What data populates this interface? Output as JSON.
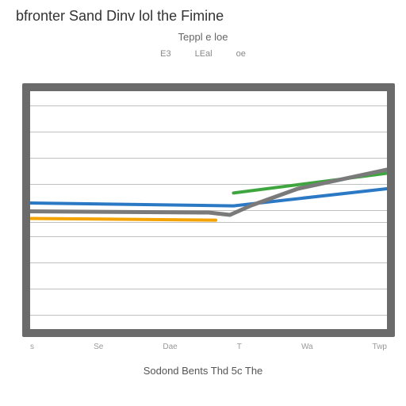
{
  "title": "bfronter Sand Dinv lol the Fimine",
  "subtitle": "Teppl e loe",
  "legend_items": [
    "E3",
    "LEal",
    "oe"
  ],
  "xlabel": "Sodond Bents Thd 5c The",
  "xticks": [
    "s",
    "Se",
    "Dae",
    "T",
    "Wa",
    "Twp"
  ],
  "chart": {
    "type": "line",
    "background_color": "#ffffff",
    "frame_color": "#6b6b6b",
    "frame_width": 10,
    "grid_color": "#c0c0c0",
    "gridline_y_positions_pct": [
      6,
      17,
      28,
      39,
      50,
      55,
      61,
      72,
      83,
      94
    ],
    "ylim": [
      0,
      100
    ],
    "series": [
      {
        "name": "green",
        "color": "#3fa63f",
        "width": 4,
        "points": [
          [
            57,
            42.8
          ],
          [
            100,
            34.5
          ]
        ]
      },
      {
        "name": "blue",
        "color": "#2b78c4",
        "width": 4,
        "points": [
          [
            0,
            47
          ],
          [
            48,
            48
          ],
          [
            57,
            48.2
          ],
          [
            100,
            41
          ]
        ]
      },
      {
        "name": "grey",
        "color": "#7a7a7a",
        "width": 5,
        "points": [
          [
            0,
            50.5
          ],
          [
            50,
            51
          ],
          [
            56,
            52
          ],
          [
            62,
            48
          ],
          [
            75,
            41
          ],
          [
            100,
            33
          ]
        ]
      },
      {
        "name": "orange",
        "color": "#f4a300",
        "width": 4,
        "points": [
          [
            0,
            53.5
          ],
          [
            52,
            54.2
          ]
        ]
      }
    ]
  },
  "title_fontsize": 18,
  "subtitle_fontsize": 13,
  "tick_fontsize": 10
}
